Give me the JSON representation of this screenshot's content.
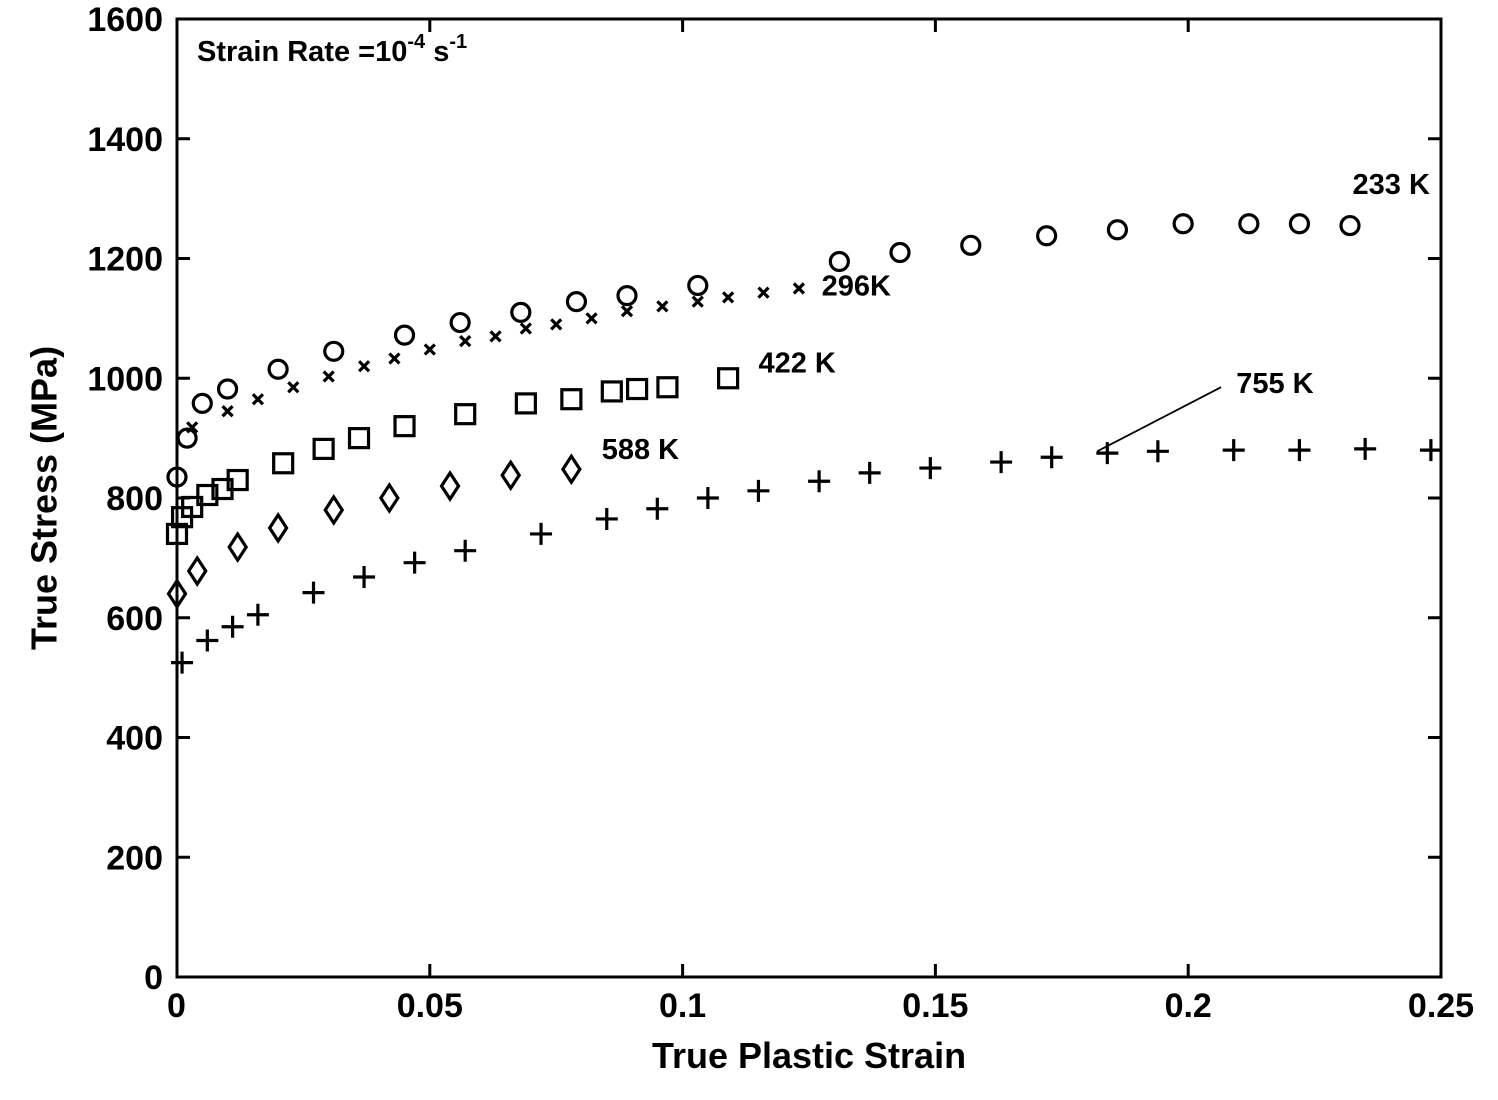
{
  "chart_data": {
    "type": "scatter",
    "title": "",
    "annotation": {
      "prefix": "Strain Rate =10",
      "exponent1": "-4",
      "unit": " s",
      "exponent2": "-1"
    },
    "xlabel": "True Plastic Strain",
    "ylabel": "True Stress (MPa)",
    "xlim": [
      0,
      0.25
    ],
    "ylim": [
      0,
      1600
    ],
    "xticks": [
      "0",
      "0.05",
      "0.1",
      "0.15",
      "0.2",
      "0.25"
    ],
    "xtick_values": [
      0,
      0.05,
      0.1,
      0.15,
      0.2,
      0.25
    ],
    "yticks": [
      "0",
      "200",
      "400",
      "600",
      "800",
      "1000",
      "1200",
      "1400",
      "1600"
    ],
    "ytick_values": [
      0,
      200,
      400,
      600,
      800,
      1000,
      1200,
      1400,
      1600
    ],
    "grid": false,
    "series": [
      {
        "name": "233 K",
        "marker": "circle",
        "x": [
          0,
          0.002,
          0.005,
          0.01,
          0.02,
          0.031,
          0.045,
          0.056,
          0.068,
          0.079,
          0.089,
          0.103,
          0.131,
          0.143,
          0.157,
          0.172,
          0.186,
          0.199,
          0.212,
          0.222,
          0.232
        ],
        "y": [
          835,
          900,
          958,
          982,
          1015,
          1045,
          1072,
          1093,
          1110,
          1128,
          1138,
          1155,
          1195,
          1210,
          1222,
          1238,
          1248,
          1258,
          1258,
          1258,
          1255
        ]
      },
      {
        "name": "296K",
        "marker": "x",
        "x": [
          0.003,
          0.01,
          0.016,
          0.023,
          0.03,
          0.037,
          0.043,
          0.05,
          0.057,
          0.063,
          0.069,
          0.075,
          0.082,
          0.089,
          0.096,
          0.103,
          0.109,
          0.116,
          0.123
        ],
        "y": [
          918,
          945,
          965,
          985,
          1003,
          1020,
          1033,
          1048,
          1062,
          1070,
          1083,
          1090,
          1100,
          1112,
          1120,
          1128,
          1135,
          1143,
          1150
        ]
      },
      {
        "name": "422 K",
        "marker": "square",
        "x": [
          0,
          0.001,
          0.003,
          0.006,
          0.009,
          0.012,
          0.021,
          0.029,
          0.036,
          0.045,
          0.057,
          0.069,
          0.078,
          0.086,
          0.091,
          0.097,
          0.109
        ],
        "y": [
          740,
          768,
          785,
          805,
          815,
          830,
          858,
          882,
          900,
          920,
          940,
          958,
          965,
          978,
          982,
          985,
          1000
        ]
      },
      {
        "name": "588 K",
        "marker": "diamond",
        "x": [
          0,
          0.004,
          0.012,
          0.02,
          0.031,
          0.042,
          0.054,
          0.066,
          0.078
        ],
        "y": [
          640,
          678,
          718,
          750,
          780,
          800,
          820,
          838,
          848
        ]
      },
      {
        "name": "755 K",
        "marker": "plus",
        "x": [
          0.001,
          0.006,
          0.011,
          0.016,
          0.027,
          0.037,
          0.047,
          0.057,
          0.072,
          0.085,
          0.095,
          0.105,
          0.115,
          0.127,
          0.137,
          0.149,
          0.163,
          0.173,
          0.184,
          0.194,
          0.209,
          0.222,
          0.235,
          0.248
        ],
        "y": [
          525,
          562,
          585,
          605,
          642,
          668,
          692,
          712,
          740,
          765,
          782,
          800,
          812,
          828,
          842,
          850,
          860,
          868,
          875,
          878,
          880,
          880,
          882,
          880
        ]
      }
    ],
    "labels": [
      {
        "text": "233 K",
        "x": 0.2325,
        "y": 1308
      },
      {
        "text": "296K",
        "x": 0.1275,
        "y": 1138
      },
      {
        "text": "422 K",
        "x": 0.115,
        "y": 1010
      },
      {
        "text": "588 K",
        "x": 0.084,
        "y": 865
      },
      {
        "text": "755 K",
        "x": 0.2095,
        "y": 975
      }
    ],
    "leader_line": {
      "x1": 0.2065,
      "y1": 985,
      "x2": 0.182,
      "y2": 878
    }
  }
}
